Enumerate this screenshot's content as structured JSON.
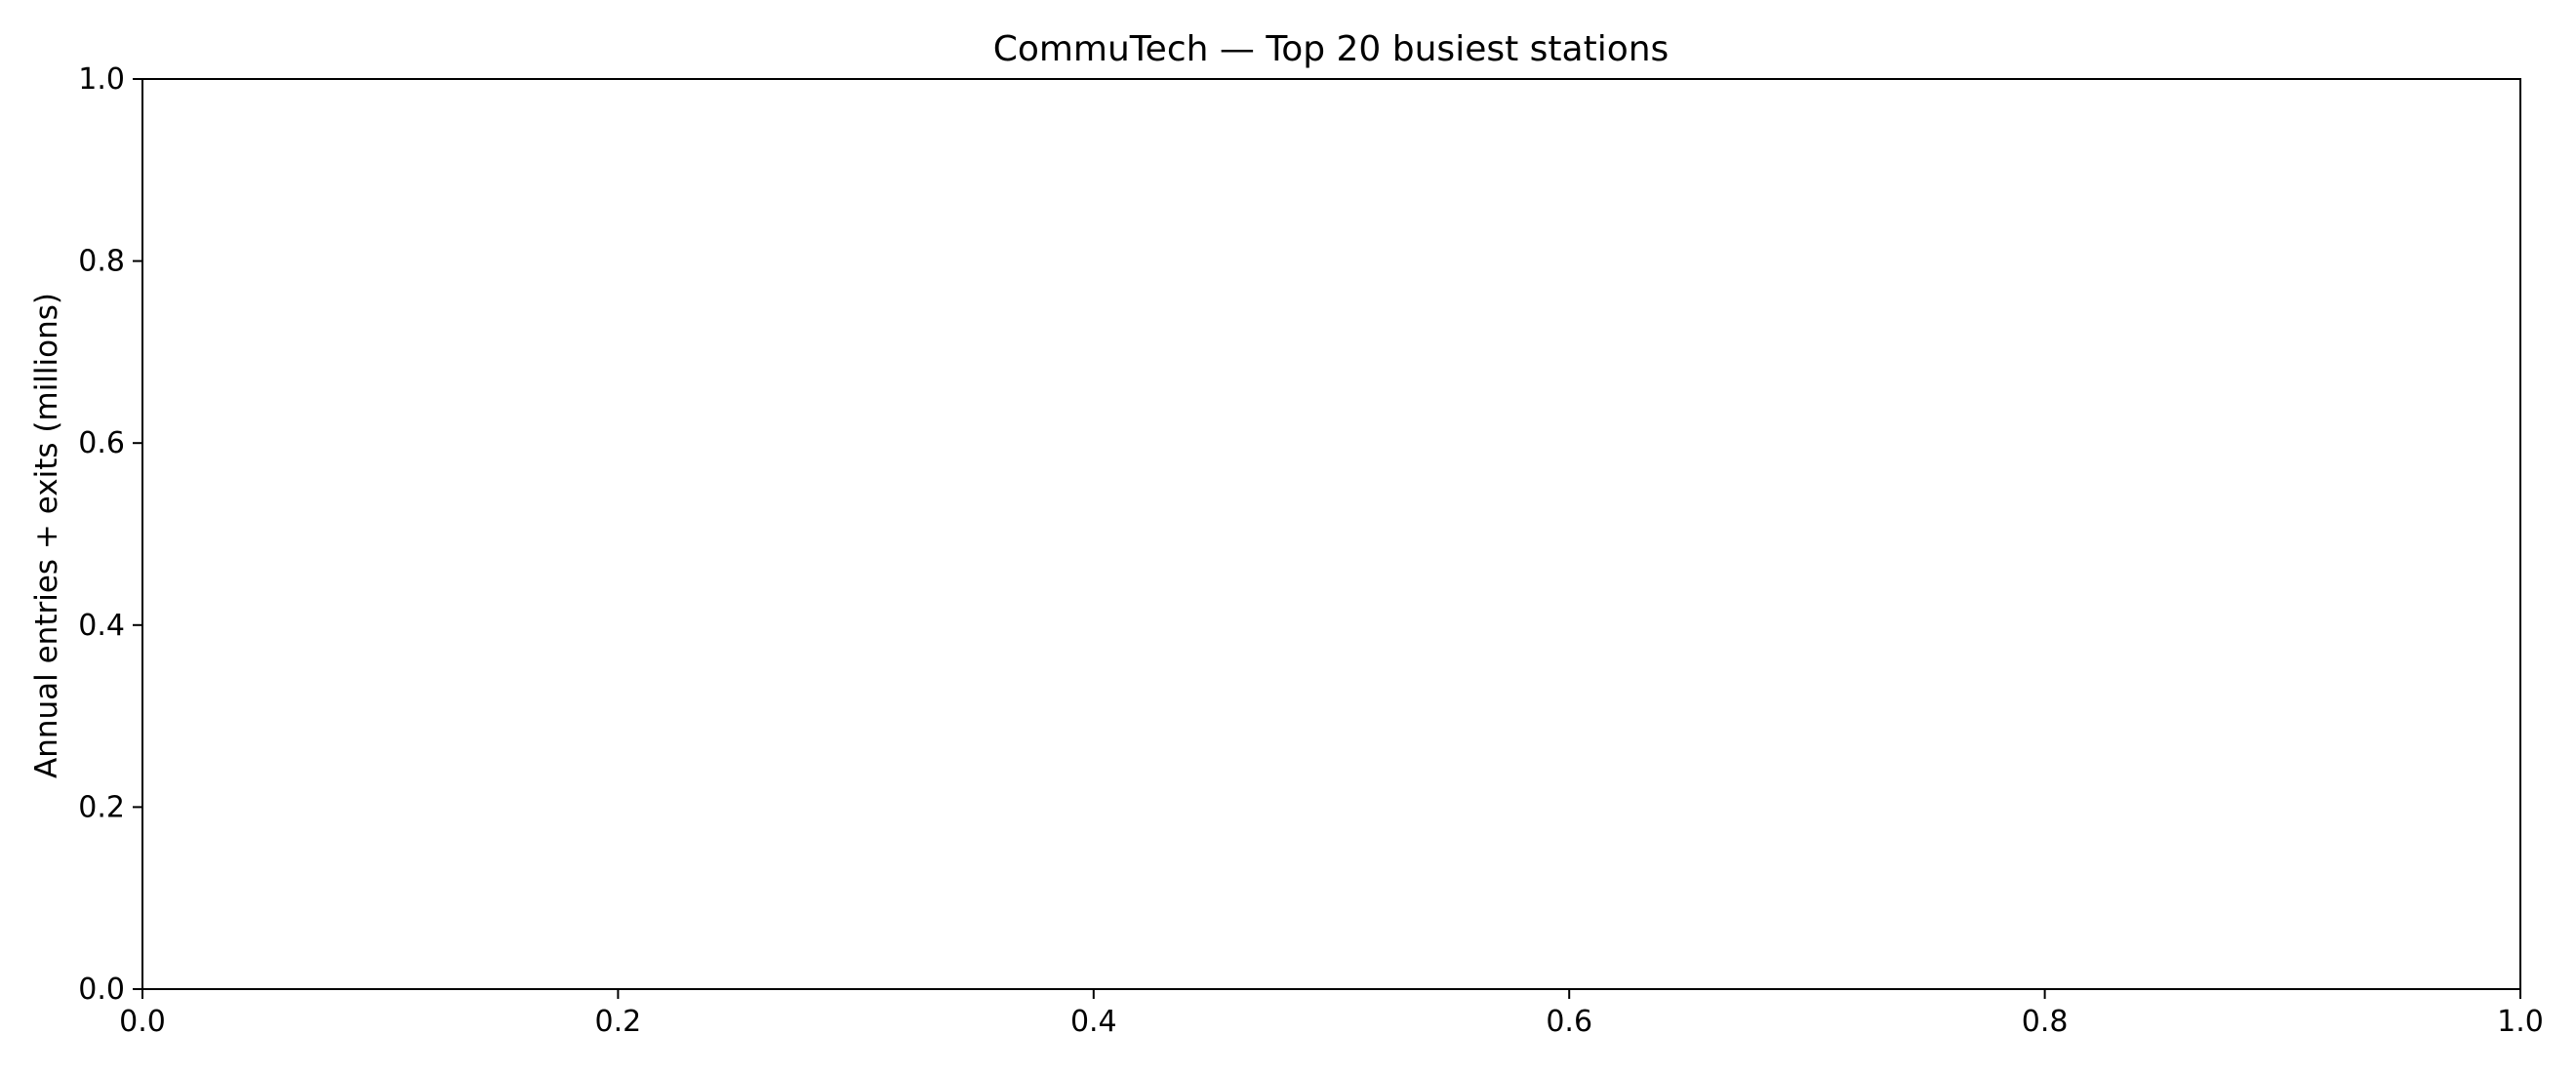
{
  "chart_data": {
    "type": "bar",
    "title": "CommuTech — Top 20 busiest stations",
    "xlabel": "",
    "ylabel": "Annual entries + exits (millions)",
    "categories": [],
    "values": [],
    "xlim": [
      0.0,
      1.0
    ],
    "ylim": [
      0.0,
      1.0
    ],
    "x_ticks": [
      "0.0",
      "0.2",
      "0.4",
      "0.6",
      "0.8",
      "1.0"
    ],
    "y_ticks": [
      "0.0",
      "0.2",
      "0.4",
      "0.6",
      "0.8",
      "1.0"
    ],
    "grid": false,
    "legend": "none"
  }
}
